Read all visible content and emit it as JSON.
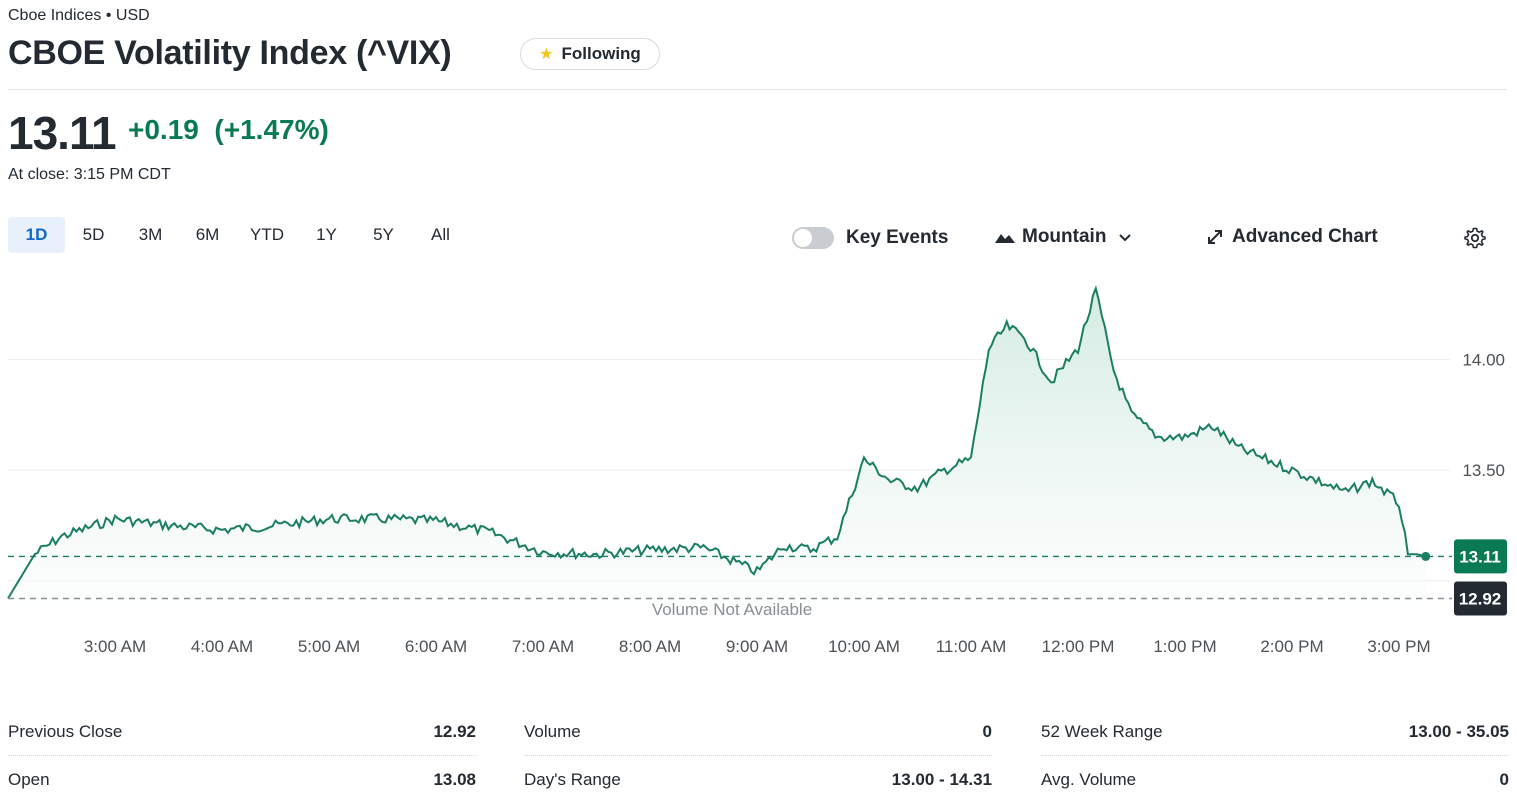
{
  "header": {
    "exchange": "Cboe Indices • USD",
    "title": "CBOE Volatility Index (^VIX)",
    "follow_label": "Following"
  },
  "quote": {
    "price": "13.11",
    "change": "+0.19",
    "change_pct": "(+1.47%)",
    "close_time": "At close: 3:15 PM CDT"
  },
  "range_tabs": [
    "1D",
    "5D",
    "3M",
    "6M",
    "YTD",
    "1Y",
    "5Y",
    "All"
  ],
  "active_range": "1D",
  "toolbar": {
    "key_events_label": "Key Events",
    "key_events_on": false,
    "chart_type_label": "Mountain",
    "advanced_label": "Advanced Chart",
    "icons": [
      "mountain-icon",
      "chevron-down-icon",
      "expand-icon",
      "gear-icon"
    ]
  },
  "colors": {
    "accent_green": "#0a7a55",
    "line_green": "#1a7f62",
    "fill_green": "#d9efe7",
    "active_tab_bg": "#e8f1fb",
    "active_tab_text": "#0f69c9",
    "current_badge": "#0a7a55",
    "prev_close_badge": "#232a31"
  },
  "chart_data": {
    "type": "area",
    "x": [
      "2:00 AM",
      "2:15 AM",
      "2:30 AM",
      "3:00 AM",
      "3:30 AM",
      "4:00 AM",
      "4:30 AM",
      "5:00 AM",
      "5:30 AM",
      "6:00 AM",
      "6:30 AM",
      "7:00 AM",
      "7:30 AM",
      "8:00 AM",
      "8:30 AM",
      "9:00 AM",
      "9:15 AM",
      "9:30 AM",
      "9:45 AM",
      "10:00 AM",
      "10:15 AM",
      "10:30 AM",
      "10:45 AM",
      "11:00 AM",
      "11:10 AM",
      "11:20 AM",
      "11:30 AM",
      "11:45 AM",
      "12:00 PM",
      "12:10 PM",
      "12:20 PM",
      "12:30 PM",
      "12:45 PM",
      "1:00 PM",
      "1:15 PM",
      "1:30 PM",
      "1:45 PM",
      "2:00 PM",
      "2:15 PM",
      "2:30 PM",
      "2:45 PM",
      "3:00 PM",
      "3:05 PM",
      "3:10 PM",
      "3:15 PM"
    ],
    "series": [
      {
        "values": [
          12.92,
          13.12,
          13.2,
          13.28,
          13.25,
          13.23,
          13.25,
          13.28,
          13.28,
          13.27,
          13.22,
          13.13,
          13.12,
          13.14,
          13.15,
          13.04,
          13.16,
          13.14,
          13.2,
          13.55,
          13.45,
          13.42,
          13.5,
          13.55,
          14.05,
          14.15,
          14.1,
          13.9,
          14.05,
          14.31,
          13.95,
          13.75,
          13.65,
          13.65,
          13.7,
          13.6,
          13.55,
          13.5,
          13.45,
          13.4,
          13.45,
          13.35,
          13.12,
          13.12,
          13.11
        ]
      }
    ],
    "x_ticks": [
      "3:00 AM",
      "4:00 AM",
      "5:00 AM",
      "6:00 AM",
      "7:00 AM",
      "8:00 AM",
      "9:00 AM",
      "10:00 AM",
      "11:00 AM",
      "12:00 PM",
      "1:00 PM",
      "2:00 PM",
      "3:00 PM"
    ],
    "y_ticks": [
      "14.00",
      "13.50"
    ],
    "ylim": [
      12.8,
      14.45
    ],
    "current_value": "13.11",
    "previous_close_value": "12.92",
    "volume_note": "Volume Not Available",
    "grid": true
  },
  "stats": [
    [
      {
        "label": "Previous Close",
        "value": "12.92"
      },
      {
        "label": "Open",
        "value": "13.08"
      }
    ],
    [
      {
        "label": "Volume",
        "value": "0"
      },
      {
        "label": "Day's Range",
        "value": "13.00 - 14.31"
      }
    ],
    [
      {
        "label": "52 Week Range",
        "value": "13.00 - 35.05"
      },
      {
        "label": "Avg. Volume",
        "value": "0"
      }
    ]
  ]
}
